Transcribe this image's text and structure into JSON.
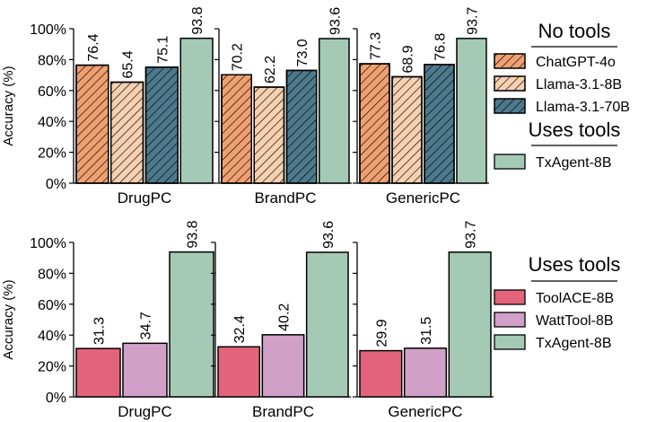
{
  "colors": {
    "chatgpt_4o": "#F0A070",
    "llama_8b": "#F6D0B0",
    "llama_70b": "#4C7A8C",
    "txagent_8b": "#A4CAB6",
    "toolace_8b": "#E3647A",
    "watttool_8b": "#D0A0C8",
    "axis": "#000000"
  },
  "legends": [
    {
      "sections": [
        {
          "heading": "No tools",
          "items": [
            {
              "label": "ChatGPT-4o",
              "color_key": "chatgpt_4o",
              "hatch": true
            },
            {
              "label": "Llama-3.1-8B",
              "color_key": "llama_8b",
              "hatch": true
            },
            {
              "label": "Llama-3.1-70B",
              "color_key": "llama_70b",
              "hatch": true
            }
          ]
        },
        {
          "heading": "Uses tools",
          "items": [
            {
              "label": "TxAgent-8B",
              "color_key": "txagent_8b",
              "hatch": false
            }
          ]
        }
      ]
    },
    {
      "sections": [
        {
          "heading": "Uses tools",
          "items": [
            {
              "label": "ToolACE-8B",
              "color_key": "toolace_8b",
              "hatch": false
            },
            {
              "label": "WattTool-8B",
              "color_key": "watttool_8b",
              "hatch": false
            },
            {
              "label": "TxAgent-8B",
              "color_key": "txagent_8b",
              "hatch": false
            }
          ]
        }
      ]
    }
  ],
  "chart_data": [
    {
      "type": "bar",
      "ylabel": "Accuracy (%)",
      "ylim": [
        0,
        100
      ],
      "yticks": [
        "0%",
        "20%",
        "40%",
        "60%",
        "80%",
        "100%"
      ],
      "legend_position": "right",
      "panels": [
        {
          "name": "DrugPC",
          "series": [
            {
              "name": "ChatGPT-4o",
              "value": 76.4,
              "label": "76.4",
              "color_key": "chatgpt_4o",
              "hatch": true
            },
            {
              "name": "Llama-3.1-8B",
              "value": 65.4,
              "label": "65.4",
              "color_key": "llama_8b",
              "hatch": true
            },
            {
              "name": "Llama-3.1-70B",
              "value": 75.1,
              "label": "75.1",
              "color_key": "llama_70b",
              "hatch": true
            },
            {
              "name": "TxAgent-8B",
              "value": 93.8,
              "label": "93.8",
              "color_key": "txagent_8b",
              "hatch": false
            }
          ]
        },
        {
          "name": "BrandPC",
          "series": [
            {
              "name": "ChatGPT-4o",
              "value": 70.2,
              "label": "70.2",
              "color_key": "chatgpt_4o",
              "hatch": true
            },
            {
              "name": "Llama-3.1-8B",
              "value": 62.2,
              "label": "62.2",
              "color_key": "llama_8b",
              "hatch": true
            },
            {
              "name": "Llama-3.1-70B",
              "value": 73.0,
              "label": "73.0",
              "color_key": "llama_70b",
              "hatch": true
            },
            {
              "name": "TxAgent-8B",
              "value": 93.6,
              "label": "93.6",
              "color_key": "txagent_8b",
              "hatch": false
            }
          ]
        },
        {
          "name": "GenericPC",
          "series": [
            {
              "name": "ChatGPT-4o",
              "value": 77.3,
              "label": "77.3",
              "color_key": "chatgpt_4o",
              "hatch": true
            },
            {
              "name": "Llama-3.1-8B",
              "value": 68.9,
              "label": "68.9",
              "color_key": "llama_8b",
              "hatch": true
            },
            {
              "name": "Llama-3.1-70B",
              "value": 76.8,
              "label": "76.8",
              "color_key": "llama_70b",
              "hatch": true
            },
            {
              "name": "TxAgent-8B",
              "value": 93.7,
              "label": "93.7",
              "color_key": "txagent_8b",
              "hatch": false
            }
          ]
        }
      ]
    },
    {
      "type": "bar",
      "ylabel": "Accuracy (%)",
      "ylim": [
        0,
        100
      ],
      "yticks": [
        "0%",
        "20%",
        "40%",
        "60%",
        "80%",
        "100%"
      ],
      "legend_position": "right",
      "panels": [
        {
          "name": "DrugPC",
          "series": [
            {
              "name": "ToolACE-8B",
              "value": 31.3,
              "label": "31.3",
              "color_key": "toolace_8b",
              "hatch": false
            },
            {
              "name": "WattTool-8B",
              "value": 34.7,
              "label": "34.7",
              "color_key": "watttool_8b",
              "hatch": false
            },
            {
              "name": "TxAgent-8B",
              "value": 93.8,
              "label": "93.8",
              "color_key": "txagent_8b",
              "hatch": false
            }
          ]
        },
        {
          "name": "BrandPC",
          "series": [
            {
              "name": "ToolACE-8B",
              "value": 32.4,
              "label": "32.4",
              "color_key": "toolace_8b",
              "hatch": false
            },
            {
              "name": "WattTool-8B",
              "value": 40.2,
              "label": "40.2",
              "color_key": "watttool_8b",
              "hatch": false
            },
            {
              "name": "TxAgent-8B",
              "value": 93.6,
              "label": "93.6",
              "color_key": "txagent_8b",
              "hatch": false
            }
          ]
        },
        {
          "name": "GenericPC",
          "series": [
            {
              "name": "ToolACE-8B",
              "value": 29.9,
              "label": "29.9",
              "color_key": "toolace_8b",
              "hatch": false
            },
            {
              "name": "WattTool-8B",
              "value": 31.5,
              "label": "31.5",
              "color_key": "watttool_8b",
              "hatch": false
            },
            {
              "name": "TxAgent-8B",
              "value": 93.7,
              "label": "93.7",
              "color_key": "txagent_8b",
              "hatch": false
            }
          ]
        }
      ]
    }
  ]
}
